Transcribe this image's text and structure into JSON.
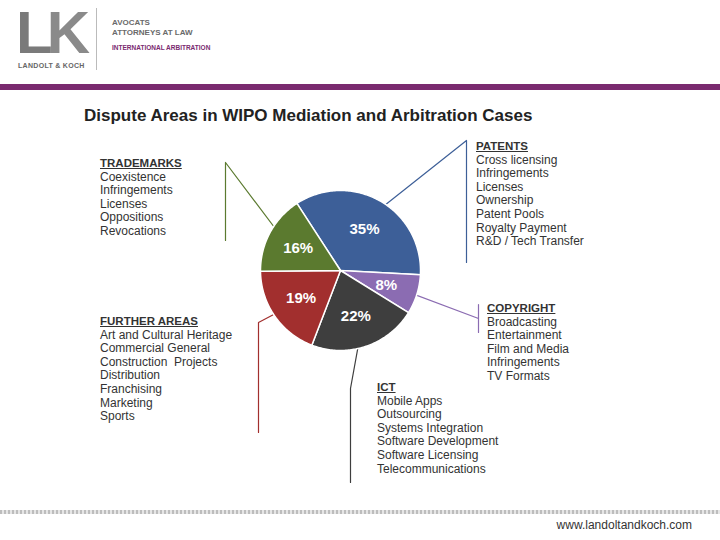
{
  "header": {
    "logo": "LK",
    "firm": "LANDOLT & KOCH",
    "lines": [
      "AVOCATS",
      "ATTORNEYS AT LAW",
      "INTERNATIONAL ARBITRATION"
    ]
  },
  "chart_data": {
    "type": "pie",
    "title": "Dispute Areas in WIPO Mediation and Arbitration Cases",
    "categories": [
      "PATENTS",
      "COPYRIGHT",
      "ICT",
      "FURTHER AREAS",
      "TRADEMARKS"
    ],
    "values": [
      35,
      8,
      22,
      19,
      16
    ],
    "value_labels": [
      "35%",
      "8%",
      "22%",
      "19%",
      "16%"
    ],
    "colors": [
      "#3d5f98",
      "#8b6cb2",
      "#3e3e3e",
      "#a22f2e",
      "#5b7a2f"
    ],
    "data_labels": true,
    "annotations": [
      [
        "Cross licensing",
        "Infringements",
        "Licenses",
        "Ownership",
        "Patent Pools",
        "Royalty Payment",
        "R&D / Tech Transfer"
      ],
      [
        "Broadcasting",
        "Entertainment",
        "Film and Media",
        "Infringements",
        "TV Formats"
      ],
      [
        "Mobile Apps",
        "Outsourcing",
        "Systems Integration",
        "Software Development",
        "Software Licensing",
        "Telecommunications"
      ],
      [
        "Art and Cultural Heritage",
        "Commercial General",
        "Construction  Projects",
        "Distribution",
        "Franchising",
        "Marketing",
        "Sports"
      ],
      [
        "Coexistence",
        "Infringements",
        "Licenses",
        "Oppositions",
        "Revocations"
      ]
    ]
  },
  "footer": {
    "url": "www.landoltandkoch.com"
  }
}
